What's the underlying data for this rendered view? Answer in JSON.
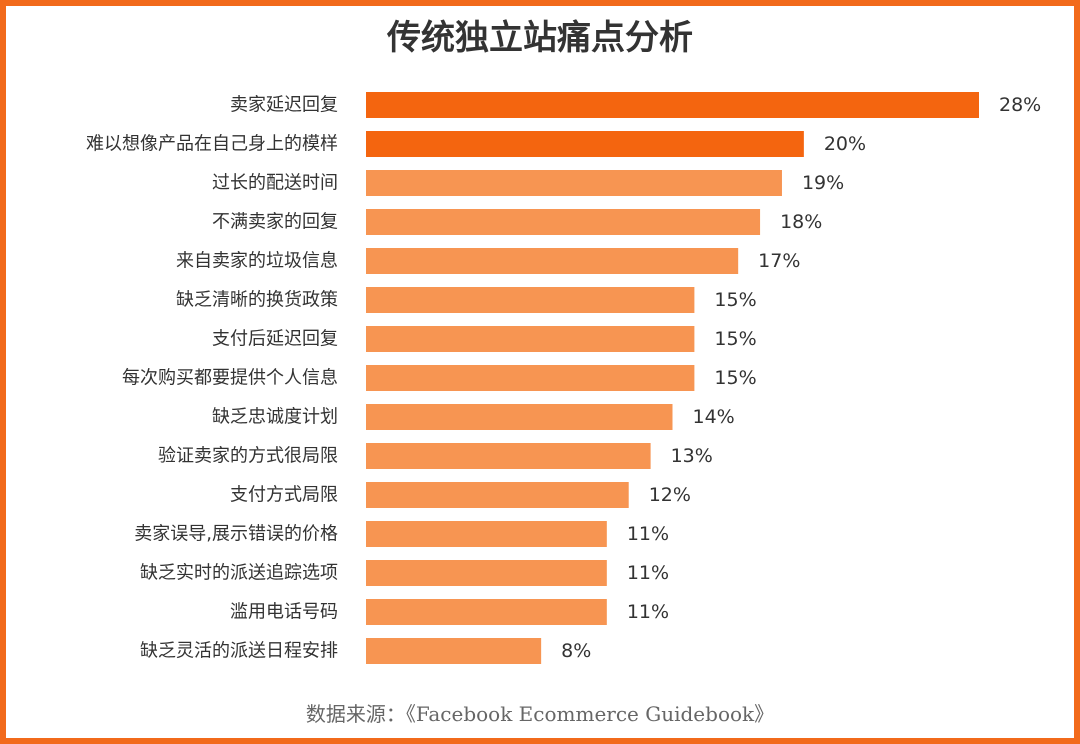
{
  "chart_data": {
    "type": "bar",
    "orientation": "horizontal",
    "title": "传统独立站痛点分析",
    "categories": [
      "卖家延迟回复",
      "难以想像产品在自己身上的模样",
      "过长的配送时间",
      "不满卖家的回复",
      "来自卖家的垃圾信息",
      "缺乏清晰的换货政策",
      "支付后延迟回复",
      "每次购买都要提供个人信息",
      "缺乏忠诚度计划",
      "验证卖家的方式很局限",
      "支付方式局限",
      "卖家误导,展示错误的价格",
      "缺乏实时的派送追踪选项",
      "滥用电话号码",
      "缺乏灵活的派送日程安排"
    ],
    "values": [
      28,
      20,
      19,
      18,
      17,
      15,
      15,
      15,
      14,
      13,
      12,
      11,
      11,
      11,
      8
    ],
    "value_labels": [
      "28%",
      "20%",
      "19%",
      "18%",
      "17%",
      "15%",
      "15%",
      "15%",
      "14%",
      "13%",
      "12%",
      "11%",
      "11%",
      "11%",
      "8%"
    ],
    "highlight_count": 2,
    "xlim": [
      0,
      28
    ],
    "grid": false,
    "legend": "none"
  },
  "source_note": "数据来源：《Facebook Ecommerce Guidebook》",
  "colors": {
    "border": "#f26a1b",
    "bar_highlight": "#f4650f",
    "bar_normal": "#f79552",
    "title": "#333333",
    "label": "#333333",
    "source": "#666666"
  }
}
